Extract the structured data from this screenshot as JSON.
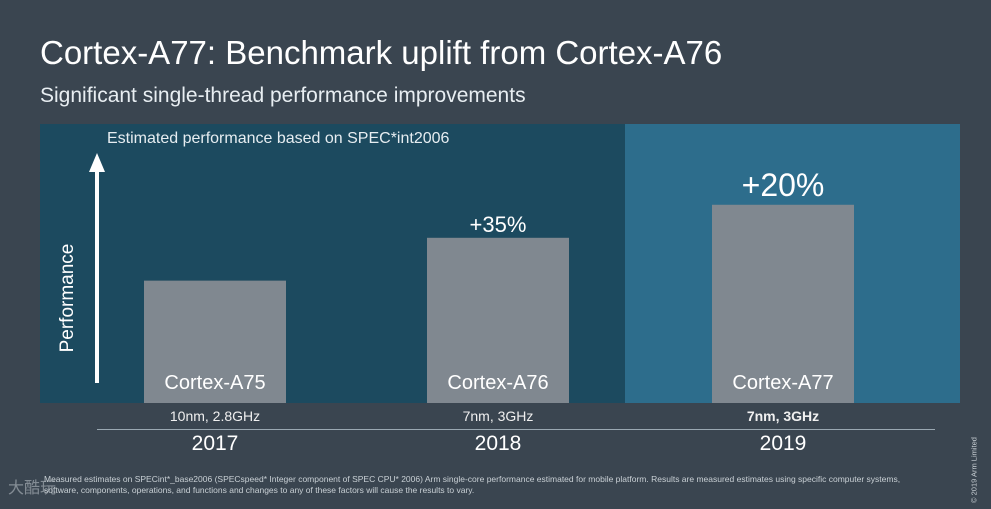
{
  "header": {
    "title": "Cortex-A77: Benchmark uplift from Cortex-A76",
    "subtitle": "Significant single-thread performance improvements"
  },
  "chart_data": {
    "type": "bar",
    "title": "Estimated performance based on SPEC*int2006",
    "ylabel": "Performance",
    "xlabel": "",
    "categories": [
      "Cortex-A75",
      "Cortex-A76",
      "Cortex-A77"
    ],
    "values": [
      1.0,
      1.35,
      1.62
    ],
    "ylim": [
      0,
      2.28
    ],
    "uplift_labels": [
      "",
      "+35%",
      "+20%"
    ],
    "specs": [
      "10nm, 2.8GHz",
      "7nm, 3GHz",
      "7nm, 3GHz"
    ],
    "years": [
      "2017",
      "2018",
      "2019"
    ],
    "highlight_index": 2,
    "colors": {
      "bar": "#808890",
      "panel": "#1c4a5f",
      "highlight_panel": "#2d6d8c"
    }
  },
  "footer": {
    "footnote": "Measured estimates on SPECint*_base2006 (SPECspeed* Integer component of SPEC CPU* 2006) Arm single-core performance estimated for mobile platform.  Results are measured estimates using specific computer systems, software, components, operations, and functions and changes to any of these factors will cause the results to vary.",
    "copyright": "© 2019 Arm Limited",
    "watermark": "大酷玩"
  }
}
